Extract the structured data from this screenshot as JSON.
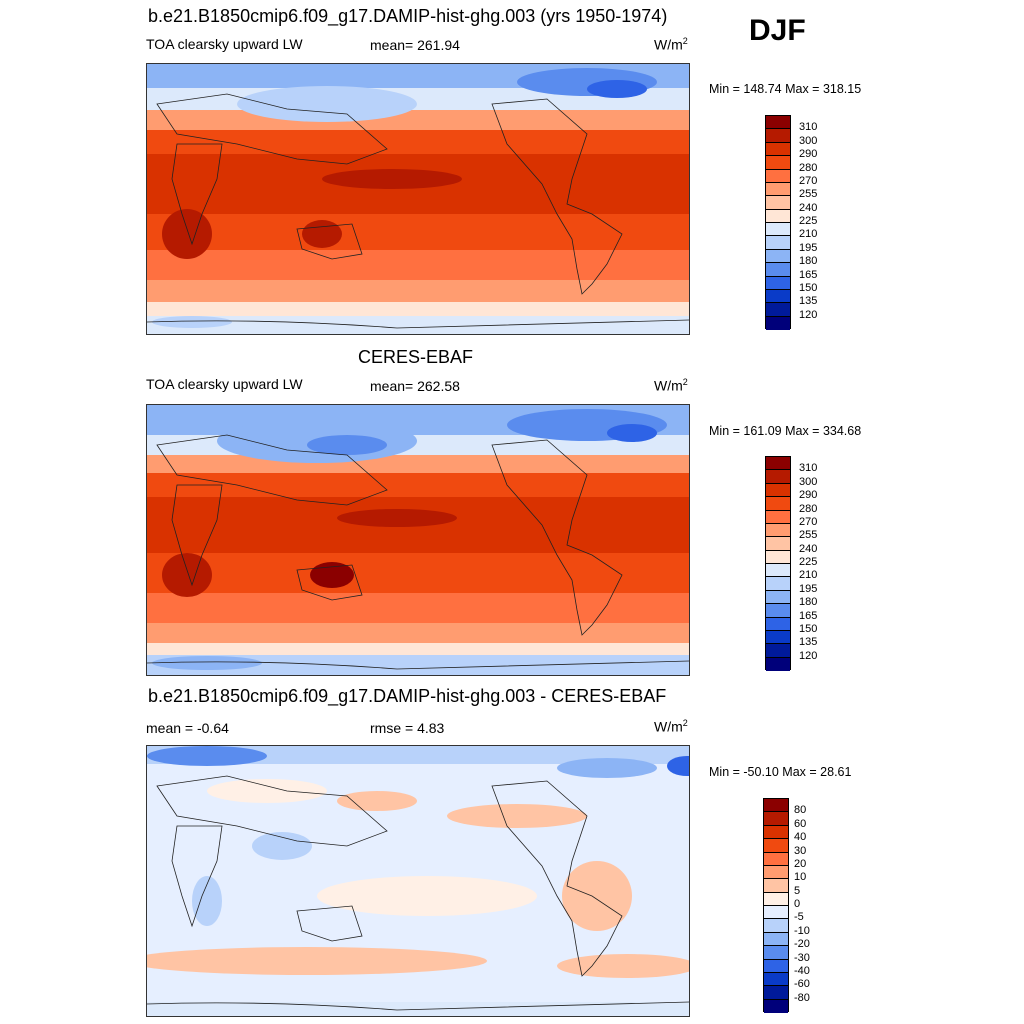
{
  "season": "DJF",
  "panels": [
    {
      "title": "b.e21.B1850cmip6.f09_g17.DAMIP-hist-ghg.003 (yrs 1950-1974)",
      "left_label": "TOA clearsky upward LW",
      "center_label": "mean= 261.94",
      "units": "W/m",
      "units_sup": "2",
      "minmax": "Min = 148.74 Max = 318.15",
      "colorbar_labels": [
        "310",
        "300",
        "290",
        "280",
        "270",
        "255",
        "240",
        "225",
        "210",
        "195",
        "180",
        "165",
        "150",
        "135",
        "120"
      ]
    },
    {
      "title": "CERES-EBAF",
      "left_label": "TOA clearsky upward LW",
      "center_label": "mean= 262.58",
      "units": "W/m",
      "units_sup": "2",
      "minmax": "Min = 161.09 Max = 334.68",
      "colorbar_labels": [
        "310",
        "300",
        "290",
        "280",
        "270",
        "255",
        "240",
        "225",
        "210",
        "195",
        "180",
        "165",
        "150",
        "135",
        "120"
      ]
    },
    {
      "title": "b.e21.B1850cmip6.f09_g17.DAMIP-hist-ghg.003 - CERES-EBAF",
      "left_label": "mean =  -0.64",
      "center_label": "rmse =   4.83",
      "units": "W/m",
      "units_sup": "2",
      "minmax": "Min = -50.10 Max =  28.61",
      "colorbar_labels": [
        "80",
        "60",
        "40",
        "30",
        "20",
        "10",
        "5",
        "0",
        "-5",
        "-10",
        "-20",
        "-30",
        "-40",
        "-60",
        "-80"
      ]
    }
  ],
  "colors": {
    "abs_scale": [
      "#8b0000",
      "#b51a00",
      "#d93200",
      "#f04a10",
      "#ff7040",
      "#ff9c70",
      "#ffc4a4",
      "#ffe6d6",
      "#dce9fb",
      "#b8d2fa",
      "#8cb4f5",
      "#5a8cee",
      "#2e63e6",
      "#0a3bc8",
      "#001a9a",
      "#00007a"
    ],
    "diff_scale": [
      "#8b0000",
      "#b51a00",
      "#d93200",
      "#f04a10",
      "#ff7040",
      "#ff9c70",
      "#ffc4a4",
      "#fff0e6",
      "#e6efff",
      "#b8d2fa",
      "#8cb4f5",
      "#5a8cee",
      "#2e63e6",
      "#0a3bc8",
      "#001a9a",
      "#00007a"
    ]
  }
}
